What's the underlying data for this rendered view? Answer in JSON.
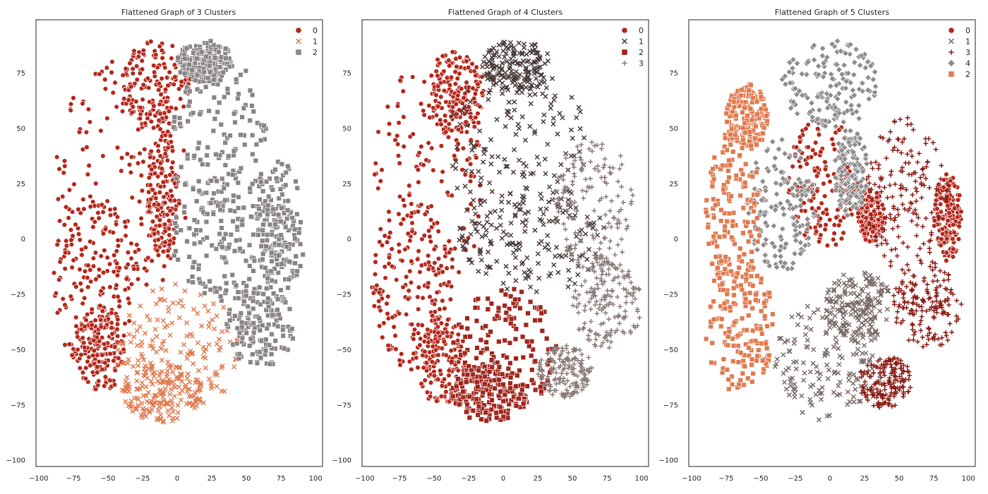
{
  "figure": {
    "background": "#ffffff"
  },
  "chart_data": [
    {
      "type": "scatter",
      "title": "Flattened Graph of 3 Clusters",
      "xlabel": "",
      "ylabel": "",
      "xlim": [
        -102,
        105
      ],
      "ylim": [
        -103,
        99
      ],
      "x_ticks": [
        -100,
        -75,
        -50,
        -25,
        0,
        25,
        50,
        75,
        100
      ],
      "y_ticks": [
        75,
        50,
        25,
        0,
        -25,
        -50,
        -75,
        -100
      ],
      "grid": false,
      "legend_position": "top-right",
      "series": [
        {
          "name": "0",
          "marker": "circle",
          "color": "#b5271b",
          "regions": [
            {
              "cx": -40,
              "cy": 25,
              "rx": 48,
              "ry": 58
            },
            {
              "cx": -15,
              "cy": 70,
              "rx": 25,
              "ry": 20
            },
            {
              "cx": -10,
              "cy": 20,
              "rx": 12,
              "ry": 30
            },
            {
              "cx": -60,
              "cy": -20,
              "rx": 30,
              "ry": 40
            },
            {
              "cx": -55,
              "cy": -50,
              "rx": 18,
              "ry": 20
            }
          ]
        },
        {
          "name": "1",
          "marker": "x",
          "color": "#e07a4f",
          "regions": [
            {
              "cx": 0,
              "cy": -50,
              "rx": 45,
              "ry": 30
            },
            {
              "cx": -10,
              "cy": -70,
              "rx": 30,
              "ry": 13
            }
          ]
        },
        {
          "name": "2",
          "marker": "square",
          "color": "#8a8484",
          "regions": [
            {
              "cx": 30,
              "cy": 40,
              "rx": 35,
              "ry": 45
            },
            {
              "cx": 40,
              "cy": 0,
              "rx": 45,
              "ry": 30
            },
            {
              "cx": 75,
              "cy": 5,
              "rx": 18,
              "ry": 30
            },
            {
              "cx": 60,
              "cy": -40,
              "rx": 25,
              "ry": 18
            },
            {
              "cx": 20,
              "cy": 80,
              "rx": 20,
              "ry": 10
            }
          ]
        }
      ]
    },
    {
      "type": "scatter",
      "title": "Flattened Graph of 4 Clusters",
      "xlabel": "",
      "ylabel": "",
      "xlim": [
        -102,
        105
      ],
      "ylim": [
        -103,
        99
      ],
      "x_ticks": [
        -100,
        -75,
        -50,
        -25,
        0,
        25,
        50,
        75,
        100
      ],
      "y_ticks": [
        75,
        50,
        25,
        0,
        -25,
        -50,
        -75,
        -100
      ],
      "grid": false,
      "legend_position": "top-right",
      "series": [
        {
          "name": "0",
          "marker": "circle",
          "color": "#b5271b",
          "regions": [
            {
              "cx": -55,
              "cy": 25,
              "rx": 40,
              "ry": 55
            },
            {
              "cx": -35,
              "cy": 65,
              "rx": 22,
              "ry": 20
            },
            {
              "cx": -65,
              "cy": -20,
              "rx": 30,
              "ry": 40
            },
            {
              "cx": -45,
              "cy": -55,
              "rx": 18,
              "ry": 20
            }
          ]
        },
        {
          "name": "1",
          "marker": "x",
          "color": "#4a3a3a",
          "regions": [
            {
              "cx": 10,
              "cy": 40,
              "rx": 50,
              "ry": 45
            },
            {
              "cx": 20,
              "cy": 0,
              "rx": 55,
              "ry": 25
            },
            {
              "cx": 10,
              "cy": 78,
              "rx": 25,
              "ry": 12
            }
          ]
        },
        {
          "name": "2",
          "marker": "square",
          "color": "#a0261c",
          "regions": [
            {
              "cx": 0,
              "cy": -50,
              "rx": 40,
              "ry": 28
            },
            {
              "cx": -10,
              "cy": -70,
              "rx": 28,
              "ry": 13
            }
          ]
        },
        {
          "name": "3",
          "marker": "plus",
          "color": "#8a7a78",
          "regions": [
            {
              "cx": 65,
              "cy": 15,
              "rx": 30,
              "ry": 30
            },
            {
              "cx": 75,
              "cy": -30,
              "rx": 25,
              "ry": 20
            },
            {
              "cx": 45,
              "cy": -60,
              "rx": 20,
              "ry": 12
            }
          ]
        }
      ]
    },
    {
      "type": "scatter",
      "title": "Flattened Graph of 5 Clusters",
      "xlabel": "",
      "ylabel": "",
      "xlim": [
        -102,
        105
      ],
      "ylim": [
        -103,
        99
      ],
      "x_ticks": [
        -100,
        -75,
        -50,
        -25,
        0,
        25,
        50,
        75,
        100
      ],
      "y_ticks": [
        75,
        50,
        25,
        0,
        -25,
        -50,
        -75,
        -100
      ],
      "grid": false,
      "legend_position": "top-right",
      "series": [
        {
          "name": "0",
          "marker": "circle",
          "color": "#b5271b",
          "regions": [
            {
              "cx": -5,
              "cy": 25,
              "rx": 25,
              "ry": 30
            },
            {
              "cx": 85,
              "cy": 10,
              "rx": 10,
              "ry": 20
            },
            {
              "cx": 30,
              "cy": 10,
              "rx": 10,
              "ry": 12
            }
          ]
        },
        {
          "name": "1",
          "marker": "x",
          "color": "#7a6a68",
          "regions": [
            {
              "cx": 0,
              "cy": -55,
              "rx": 40,
              "ry": 28
            },
            {
              "cx": 20,
              "cy": -30,
              "rx": 25,
              "ry": 15
            }
          ]
        },
        {
          "name": "3",
          "marker": "plus",
          "color": "#8a1c14",
          "regions": [
            {
              "cx": 55,
              "cy": 20,
              "rx": 30,
              "ry": 35
            },
            {
              "cx": 70,
              "cy": -30,
              "rx": 25,
              "ry": 20
            },
            {
              "cx": 40,
              "cy": -65,
              "rx": 20,
              "ry": 12
            }
          ]
        },
        {
          "name": "4",
          "marker": "diamond",
          "color": "#8f8b8b",
          "regions": [
            {
              "cx": 0,
              "cy": 70,
              "rx": 35,
              "ry": 20
            },
            {
              "cx": -35,
              "cy": 15,
              "rx": 25,
              "ry": 30
            },
            {
              "cx": 15,
              "cy": 30,
              "rx": 12,
              "ry": 20
            }
          ]
        },
        {
          "name": "2",
          "marker": "square",
          "color": "#e07a4f",
          "regions": [
            {
              "cx": -70,
              "cy": 10,
              "rx": 20,
              "ry": 40
            },
            {
              "cx": -65,
              "cy": -40,
              "rx": 25,
              "ry": 30
            },
            {
              "cx": -60,
              "cy": 55,
              "rx": 15,
              "ry": 15
            }
          ]
        }
      ]
    }
  ]
}
